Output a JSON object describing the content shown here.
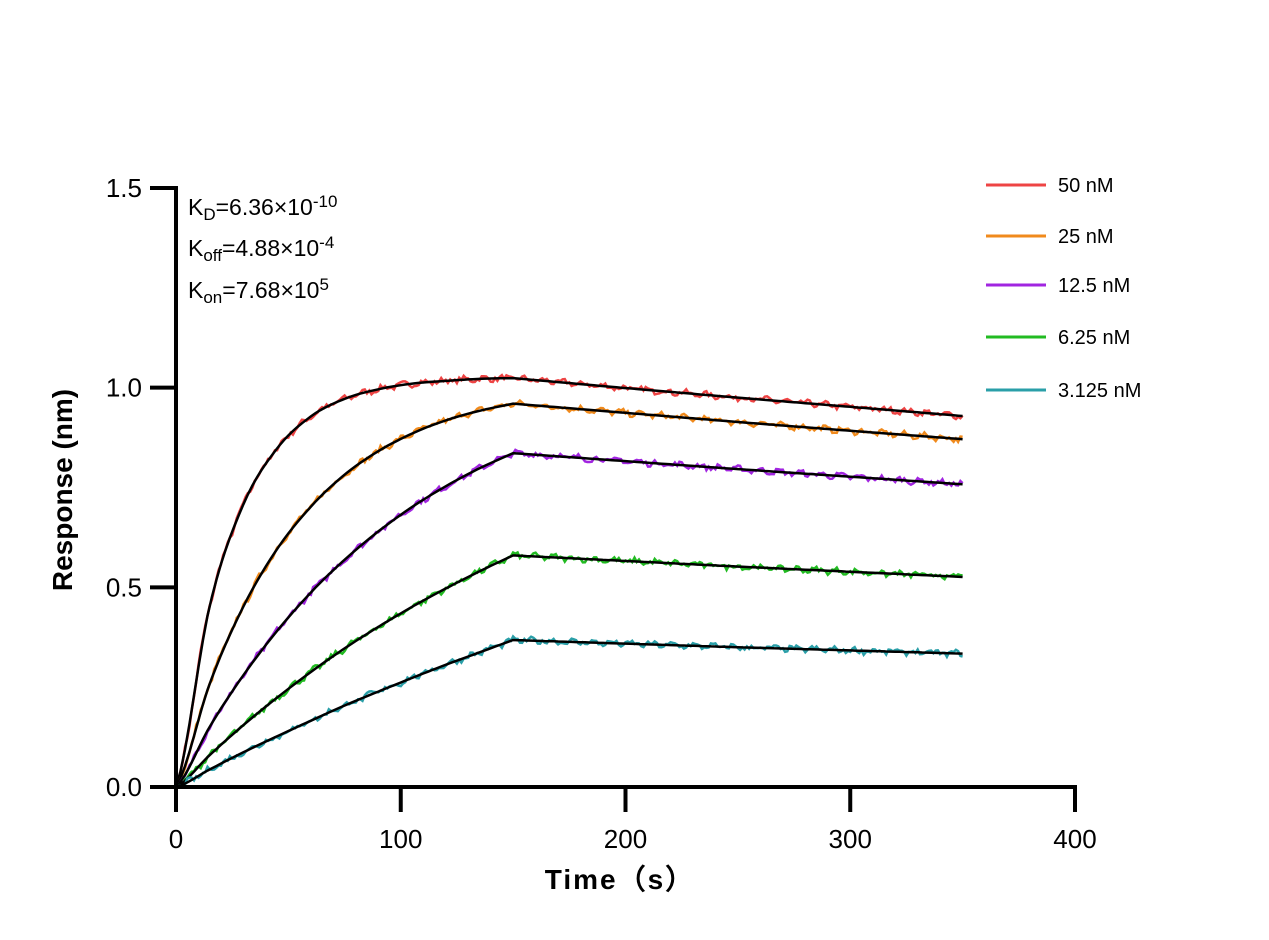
{
  "chart_data": {
    "type": "line",
    "xlabel": "Time（s）",
    "ylabel": "Response (nm)",
    "xlim": [
      0,
      400
    ],
    "ylim": [
      0,
      1.5
    ],
    "xticks": [
      "0",
      "100",
      "200",
      "300",
      "400"
    ],
    "yticks": [
      "0.0",
      "0.5",
      "1.0",
      "1.5"
    ],
    "grid": false,
    "legend_position": "top-right",
    "fit_color": "#000000",
    "annotations": [
      {
        "base": "K",
        "sub": "D",
        "mid": "=6.36×10",
        "sup": "-10"
      },
      {
        "base": "K",
        "sub": "off",
        "mid": "=4.88×10",
        "sup": "-4"
      },
      {
        "base": "K",
        "sub": "on",
        "mid": "=7.68×10",
        "sup": "5"
      }
    ],
    "x": [
      0,
      15,
      30,
      45,
      60,
      75,
      90,
      105,
      120,
      135,
      150,
      200,
      250,
      300,
      350
    ],
    "series": [
      {
        "name": "50 nM",
        "color": "#ee4444",
        "values": [
          0,
          0.454,
          0.708,
          0.848,
          0.928,
          0.972,
          0.996,
          1.01,
          1.017,
          1.022,
          1.024,
          0.999,
          0.975,
          0.952,
          0.929
        ]
      },
      {
        "name": "25 nM",
        "color": "#f08a1c",
        "values": [
          0,
          0.259,
          0.452,
          0.596,
          0.702,
          0.782,
          0.841,
          0.885,
          0.918,
          0.942,
          0.96,
          0.937,
          0.914,
          0.892,
          0.871
        ]
      },
      {
        "name": "12.5 nM",
        "color": "#a125e0",
        "values": [
          0,
          0.151,
          0.28,
          0.391,
          0.487,
          0.569,
          0.64,
          0.701,
          0.753,
          0.798,
          0.836,
          0.816,
          0.796,
          0.777,
          0.758
        ]
      },
      {
        "name": "6.25 nM",
        "color": "#22bb22",
        "values": [
          0,
          0.08,
          0.155,
          0.224,
          0.288,
          0.347,
          0.401,
          0.451,
          0.497,
          0.54,
          0.58,
          0.566,
          0.552,
          0.539,
          0.526
        ]
      },
      {
        "name": "3.125 nM",
        "color": "#2a9fa8",
        "values": [
          0,
          0.044,
          0.087,
          0.127,
          0.166,
          0.204,
          0.239,
          0.273,
          0.306,
          0.337,
          0.368,
          0.359,
          0.35,
          0.342,
          0.334
        ]
      }
    ]
  }
}
